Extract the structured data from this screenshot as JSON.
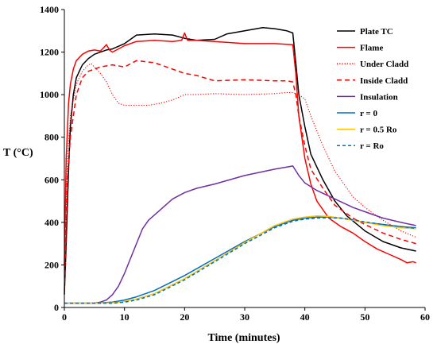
{
  "chart_data": {
    "type": "line",
    "title": "",
    "xlabel": "Time (minutes)",
    "ylabel": "T (°C)",
    "xlim": [
      0,
      60
    ],
    "ylim": [
      0,
      1400
    ],
    "xticks": [
      0,
      10,
      20,
      30,
      40,
      50,
      60
    ],
    "yticks": [
      0,
      200,
      400,
      600,
      800,
      1000,
      1200,
      1400
    ],
    "grid": false,
    "legend_position": "right",
    "series": [
      {
        "name": "Plate TC",
        "color": "#000000",
        "dash": "solid",
        "x": [
          0,
          0.3,
          0.7,
          1,
          1.5,
          2,
          3,
          4,
          5,
          6,
          7,
          8,
          10,
          12,
          15,
          18,
          20,
          22,
          25,
          27,
          30,
          33,
          35,
          37,
          38,
          38.5,
          39,
          40,
          41,
          43,
          45,
          47,
          50,
          53,
          56,
          58.5
        ],
        "y": [
          60,
          300,
          650,
          850,
          1000,
          1080,
          1140,
          1170,
          1190,
          1200,
          1210,
          1215,
          1240,
          1280,
          1285,
          1280,
          1265,
          1255,
          1260,
          1285,
          1300,
          1315,
          1310,
          1300,
          1290,
          1150,
          1000,
          850,
          720,
          600,
          500,
          430,
          360,
          310,
          280,
          265
        ]
      },
      {
        "name": "Flame",
        "color": "#ff0000",
        "dash": "solid",
        "x": [
          0,
          0.3,
          0.7,
          1,
          1.5,
          2,
          3,
          4,
          5,
          6,
          7,
          7.5,
          8,
          10,
          12,
          15,
          18,
          19.5,
          20,
          20.5,
          22,
          25,
          30,
          35,
          38,
          38.5,
          39,
          40,
          41,
          42,
          44,
          46,
          48,
          50,
          52,
          54,
          56,
          57,
          58,
          58.5
        ],
        "y": [
          200,
          700,
          960,
          1050,
          1120,
          1160,
          1190,
          1205,
          1210,
          1205,
          1235,
          1210,
          1200,
          1230,
          1250,
          1255,
          1250,
          1255,
          1290,
          1255,
          1255,
          1250,
          1240,
          1240,
          1235,
          1100,
          900,
          700,
          580,
          500,
          420,
          380,
          350,
          310,
          275,
          250,
          225,
          210,
          215,
          210
        ]
      },
      {
        "name": "Under Cladd",
        "color": "#ff0000",
        "dash": "1.2 2",
        "x": [
          0,
          0.5,
          1,
          2,
          3,
          4,
          4.5,
          5,
          6,
          7,
          8,
          9,
          10,
          12,
          14,
          16,
          18,
          20,
          22,
          25,
          30,
          35,
          37,
          38,
          39,
          40,
          41,
          43,
          45,
          48,
          50,
          53,
          56,
          58.5
        ],
        "y": [
          100,
          700,
          900,
          1050,
          1110,
          1140,
          1145,
          1130,
          1100,
          1060,
          1000,
          960,
          950,
          950,
          950,
          960,
          975,
          1000,
          1000,
          1005,
          1000,
          1005,
          1010,
          1010,
          1000,
          980,
          900,
          760,
          640,
          520,
          470,
          410,
          360,
          330
        ]
      },
      {
        "name": "Inside Cladd",
        "color": "#ff0000",
        "dash": "6 4",
        "x": [
          0,
          0.5,
          1,
          2,
          3,
          4,
          5,
          6,
          8,
          10,
          12,
          15,
          18,
          20,
          22,
          25,
          30,
          35,
          37,
          38,
          38.5,
          39,
          40,
          41,
          43,
          45,
          48,
          50,
          53,
          56,
          58.5
        ],
        "y": [
          80,
          600,
          800,
          1000,
          1080,
          1110,
          1120,
          1130,
          1140,
          1130,
          1160,
          1150,
          1120,
          1100,
          1090,
          1065,
          1070,
          1065,
          1065,
          1060,
          1000,
          900,
          760,
          650,
          560,
          480,
          420,
          390,
          350,
          320,
          300
        ]
      },
      {
        "name": "Insulation",
        "color": "#7030a0",
        "dash": "solid",
        "x": [
          0,
          1,
          3,
          5,
          6,
          7,
          8,
          9,
          10,
          11,
          12,
          13,
          14,
          16,
          18,
          20,
          22,
          25,
          30,
          35,
          37,
          38,
          39,
          40,
          42,
          45,
          48,
          50,
          53,
          56,
          58.5
        ],
        "y": [
          20,
          20,
          20,
          20,
          25,
          35,
          60,
          100,
          160,
          230,
          300,
          370,
          410,
          460,
          510,
          540,
          560,
          580,
          620,
          650,
          660,
          665,
          620,
          585,
          550,
          510,
          470,
          450,
          420,
          400,
          385
        ]
      },
      {
        "name": "r = 0",
        "color": "#0070c0",
        "dash": "solid",
        "x": [
          0,
          2,
          5,
          8,
          10,
          12,
          15,
          20,
          25,
          30,
          35,
          38,
          40,
          42,
          44,
          46,
          48,
          50,
          53,
          56,
          58.5
        ],
        "y": [
          20,
          20,
          20,
          25,
          35,
          50,
          80,
          150,
          230,
          310,
          380,
          410,
          420,
          425,
          425,
          420,
          410,
          400,
          390,
          380,
          375
        ]
      },
      {
        "name": "r = 0.5 Ro",
        "color": "#ffc000",
        "dash": "solid",
        "x": [
          0,
          2,
          5,
          8,
          10,
          12,
          15,
          20,
          25,
          30,
          35,
          38,
          40,
          42,
          44,
          46,
          48,
          50,
          53,
          56,
          58.5
        ],
        "y": [
          20,
          20,
          20,
          22,
          28,
          40,
          65,
          135,
          220,
          305,
          385,
          415,
          425,
          430,
          428,
          420,
          410,
          400,
          385,
          375,
          370
        ]
      },
      {
        "name": "r = Ro",
        "color": "#0070c0",
        "dash": "4 3",
        "x": [
          0,
          2,
          5,
          8,
          10,
          12,
          15,
          20,
          25,
          30,
          35,
          38,
          40,
          42,
          44,
          46,
          48,
          50,
          53,
          56,
          58.5
        ],
        "y": [
          20,
          20,
          20,
          20,
          25,
          35,
          60,
          130,
          215,
          300,
          375,
          405,
          415,
          420,
          422,
          420,
          412,
          402,
          390,
          380,
          372
        ]
      }
    ]
  }
}
